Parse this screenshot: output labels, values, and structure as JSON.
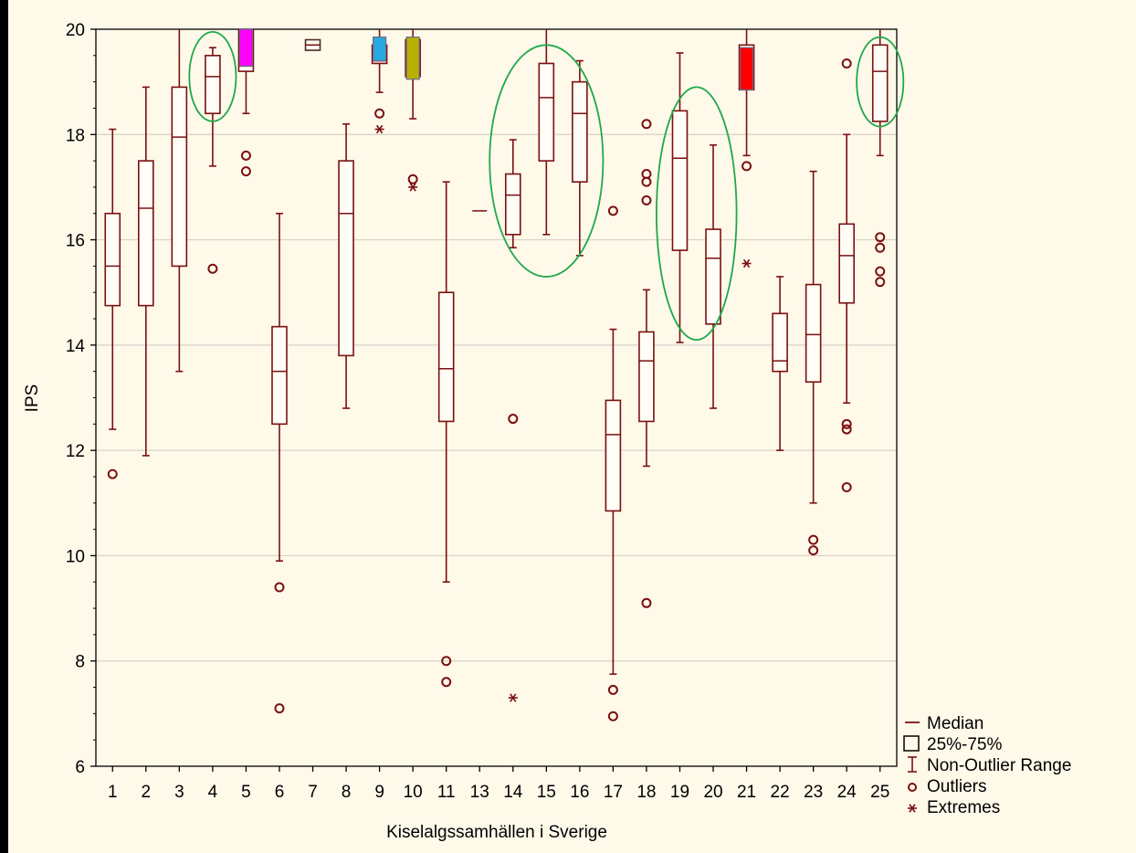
{
  "chart_data": {
    "type": "box",
    "xlabel": "Kiselalgssamhällen i Sverige",
    "ylabel": "IPS",
    "ylim": [
      6,
      20
    ],
    "yticks": [
      6,
      8,
      10,
      12,
      14,
      16,
      18,
      20
    ],
    "grid": "horizontal",
    "legend_position": "bottom-right",
    "box_color": "#7a1010",
    "categories": [
      "1",
      "2",
      "3",
      "4",
      "5",
      "6",
      "7",
      "8",
      "9",
      "10",
      "11",
      "13",
      "14",
      "15",
      "16",
      "17",
      "18",
      "19",
      "20",
      "21",
      "22",
      "23",
      "24",
      "25"
    ],
    "boxes": [
      {
        "category": "1",
        "whisker_low": 12.4,
        "q1": 14.75,
        "median": 15.5,
        "q3": 16.5,
        "whisker_high": 18.1,
        "outliers": [
          11.55
        ],
        "extremes": []
      },
      {
        "category": "2",
        "whisker_low": 11.9,
        "q1": 14.75,
        "median": 16.6,
        "q3": 17.5,
        "whisker_high": 18.9,
        "outliers": [],
        "extremes": []
      },
      {
        "category": "3",
        "whisker_low": 13.5,
        "q1": 15.5,
        "median": 17.95,
        "q3": 18.9,
        "whisker_high": 20,
        "outliers": [],
        "extremes": []
      },
      {
        "category": "4",
        "whisker_low": 17.4,
        "q1": 18.4,
        "median": 19.1,
        "q3": 19.5,
        "whisker_high": 19.65,
        "outliers": [
          15.45
        ],
        "extremes": []
      },
      {
        "category": "5",
        "whisker_low": 18.4,
        "q1": 19.2,
        "median": 19.3,
        "q3": 20,
        "whisker_high": 20,
        "outliers": [
          17.6,
          17.3
        ],
        "extremes": []
      },
      {
        "category": "6",
        "whisker_low": 9.9,
        "q1": 12.5,
        "median": 13.5,
        "q3": 14.35,
        "whisker_high": 16.5,
        "outliers": [
          9.4,
          7.1
        ],
        "extremes": []
      },
      {
        "category": "7",
        "whisker_low": 19.6,
        "q1": 19.6,
        "median": 19.7,
        "q3": 19.8,
        "whisker_high": 19.8,
        "outliers": [],
        "extremes": []
      },
      {
        "category": "8",
        "whisker_low": 12.8,
        "q1": 13.8,
        "median": 16.5,
        "q3": 17.5,
        "whisker_high": 18.2,
        "outliers": [],
        "extremes": []
      },
      {
        "category": "9",
        "whisker_low": 18.8,
        "q1": 19.35,
        "median": 19.4,
        "q3": 19.7,
        "whisker_high": 20,
        "outliers": [
          18.4
        ],
        "extremes": [
          18.1
        ]
      },
      {
        "category": "10",
        "whisker_low": 18.3,
        "q1": 19.1,
        "median": 19.4,
        "q3": 19.8,
        "whisker_high": 20,
        "outliers": [
          17.15
        ],
        "extremes": [
          17.0
        ]
      },
      {
        "category": "11",
        "whisker_low": 9.5,
        "q1": 12.55,
        "median": 13.55,
        "q3": 15.0,
        "whisker_high": 17.1,
        "outliers": [
          8.0,
          7.6
        ],
        "extremes": []
      },
      {
        "category": "13",
        "whisker_low": 16.55,
        "q1": 16.55,
        "median": 16.55,
        "q3": 16.55,
        "whisker_high": 16.55,
        "outliers": [],
        "extremes": []
      },
      {
        "category": "14",
        "whisker_low": 15.85,
        "q1": 16.1,
        "median": 16.85,
        "q3": 17.25,
        "whisker_high": 17.9,
        "outliers": [
          12.6
        ],
        "extremes": [
          7.3
        ]
      },
      {
        "category": "15",
        "whisker_low": 16.1,
        "q1": 17.5,
        "median": 18.7,
        "q3": 19.35,
        "whisker_high": 20,
        "outliers": [],
        "extremes": []
      },
      {
        "category": "16",
        "whisker_low": 15.7,
        "q1": 17.1,
        "median": 18.4,
        "q3": 19.0,
        "whisker_high": 19.4,
        "outliers": [],
        "extremes": []
      },
      {
        "category": "17",
        "whisker_low": 7.75,
        "q1": 10.85,
        "median": 12.3,
        "q3": 12.95,
        "whisker_high": 14.3,
        "outliers": [
          16.55,
          7.45,
          6.95
        ],
        "extremes": []
      },
      {
        "category": "18",
        "whisker_low": 11.7,
        "q1": 12.55,
        "median": 13.7,
        "q3": 14.25,
        "whisker_high": 15.05,
        "outliers": [
          18.2,
          17.25,
          17.1,
          16.75,
          9.1
        ],
        "extremes": []
      },
      {
        "category": "19",
        "whisker_low": 14.05,
        "q1": 15.8,
        "median": 17.55,
        "q3": 18.45,
        "whisker_high": 19.55,
        "outliers": [],
        "extremes": []
      },
      {
        "category": "20",
        "whisker_low": 12.8,
        "q1": 14.4,
        "median": 15.65,
        "q3": 16.2,
        "whisker_high": 17.8,
        "outliers": [],
        "extremes": []
      },
      {
        "category": "21",
        "whisker_low": 17.6,
        "q1": 18.85,
        "median": 19.3,
        "q3": 19.7,
        "whisker_high": 20,
        "outliers": [
          17.4
        ],
        "extremes": [
          15.55
        ]
      },
      {
        "category": "22",
        "whisker_low": 12.0,
        "q1": 13.5,
        "median": 13.7,
        "q3": 14.6,
        "whisker_high": 15.3,
        "outliers": [],
        "extremes": []
      },
      {
        "category": "23",
        "whisker_low": 11.0,
        "q1": 13.3,
        "median": 14.2,
        "q3": 15.15,
        "whisker_high": 17.3,
        "outliers": [
          10.3,
          10.1
        ],
        "extremes": []
      },
      {
        "category": "24",
        "whisker_low": 12.9,
        "q1": 14.8,
        "median": 15.7,
        "q3": 16.3,
        "whisker_high": 18.0,
        "outliers": [
          19.35,
          12.5,
          12.4,
          11.3
        ],
        "extremes": []
      },
      {
        "category": "25",
        "whisker_low": 17.6,
        "q1": 18.25,
        "median": 19.2,
        "q3": 19.7,
        "whisker_high": 20,
        "outliers": [
          16.05,
          15.85,
          15.4,
          15.2
        ],
        "extremes": []
      }
    ],
    "legend": [
      {
        "symbol": "median-line",
        "label": "Median"
      },
      {
        "symbol": "box",
        "label": "25%-75%"
      },
      {
        "symbol": "whisker",
        "label": "Non-Outlier Range"
      },
      {
        "symbol": "circle",
        "label": "Outliers"
      },
      {
        "symbol": "asterisk",
        "label": "Extremes"
      }
    ],
    "highlight_markers": [
      {
        "category": "5",
        "color": "#ff00ff",
        "from": 19.3,
        "to": 20
      },
      {
        "category": "9",
        "color": "#29a9e1",
        "from": 19.4,
        "to": 19.85
      },
      {
        "category": "10",
        "color": "#b8b000",
        "from": 19.05,
        "to": 19.85
      },
      {
        "category": "21",
        "color": "#ff0000",
        "from": 18.85,
        "to": 19.65
      }
    ],
    "ellipse_color": "#1fa84a",
    "ellipses": [
      {
        "categories": [
          "4"
        ],
        "y_center": 19.1,
        "y_radius": 0.85
      },
      {
        "categories": [
          "14",
          "15",
          "16"
        ],
        "y_center": 17.5,
        "y_radius": 2.2
      },
      {
        "categories": [
          "19",
          "20"
        ],
        "y_center": 16.5,
        "y_radius": 2.4
      },
      {
        "categories": [
          "25"
        ],
        "y_center": 19.0,
        "y_radius": 0.85
      }
    ]
  }
}
